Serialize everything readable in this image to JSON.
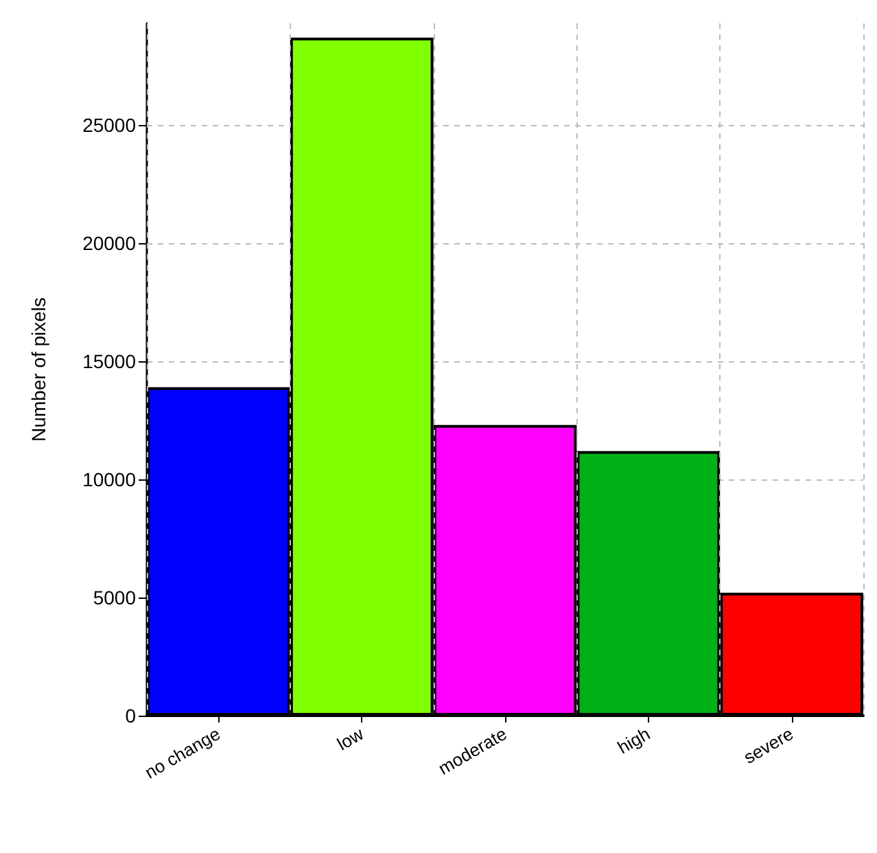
{
  "chart_data": {
    "type": "bar",
    "ylabel": "Number of pixels",
    "categories": [
      "no change",
      "low",
      "moderate",
      "high",
      "severe"
    ],
    "values": [
      13900,
      28700,
      12300,
      11200,
      5200
    ],
    "colors": [
      "#0000ff",
      "#80ff00",
      "#ff00ff",
      "#00b017",
      "#ff0000"
    ],
    "ylim": [
      0,
      29300
    ],
    "yticks": [
      0,
      5000,
      10000,
      15000,
      20000,
      25000
    ],
    "grid": true
  }
}
